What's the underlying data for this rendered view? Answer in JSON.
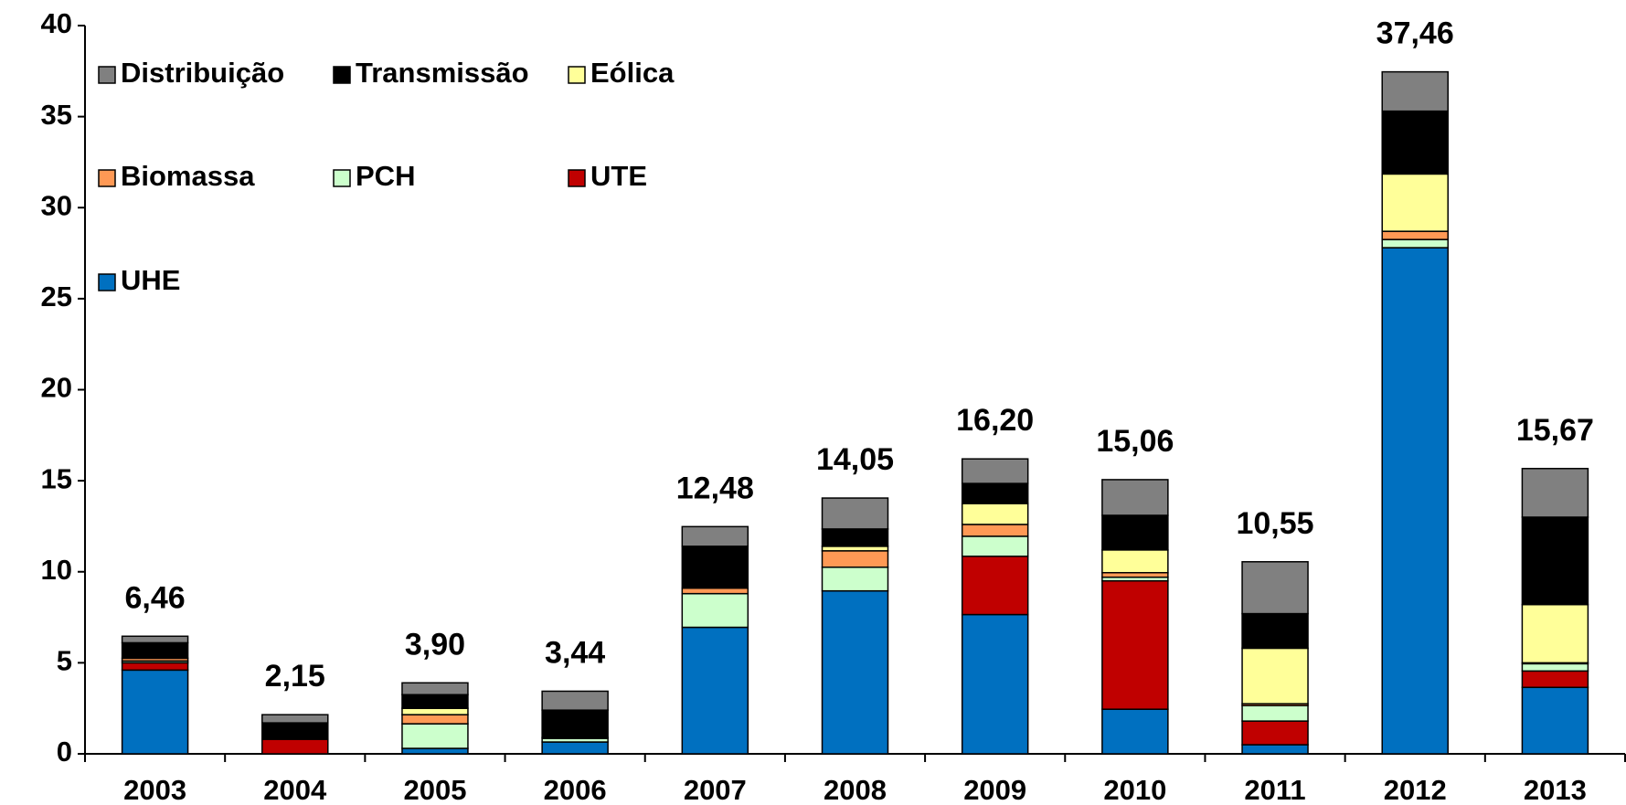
{
  "chart_data": {
    "type": "stacked_bar",
    "categories": [
      "2003",
      "2004",
      "2005",
      "2006",
      "2007",
      "2008",
      "2009",
      "2010",
      "2011",
      "2012",
      "2013"
    ],
    "series": [
      {
        "name": "UHE",
        "color": "#0070c0",
        "values": [
          4.6,
          0,
          0.3,
          0.65,
          6.95,
          8.95,
          7.65,
          2.45,
          0.5,
          27.8,
          3.65
        ]
      },
      {
        "name": "UTE",
        "color": "#c00000",
        "values": [
          0.4,
          0.8,
          0,
          0,
          0,
          0,
          3.2,
          7.05,
          1.3,
          0,
          0.9
        ]
      },
      {
        "name": "PCH",
        "color": "#ccffcc",
        "values": [
          0.1,
          0,
          1.35,
          0.2,
          1.85,
          1.3,
          1.1,
          0.2,
          0.85,
          0.45,
          0.4
        ]
      },
      {
        "name": "Biomassa",
        "color": "#ff9955",
        "values": [
          0.15,
          0,
          0.5,
          0.05,
          0.3,
          0.9,
          0.65,
          0.25,
          0.1,
          0.45,
          0.05
        ]
      },
      {
        "name": "Eólica",
        "color": "#ffff99",
        "values": [
          0,
          0,
          0.35,
          0,
          0,
          0.25,
          1.15,
          1.25,
          3.05,
          3.15,
          3.2
        ]
      },
      {
        "name": "Transmissão",
        "color": "#000000",
        "values": [
          0.85,
          0.9,
          0.75,
          1.5,
          2.3,
          0.95,
          1.1,
          1.9,
          1.9,
          3.45,
          4.8
        ]
      },
      {
        "name": "Distribuição",
        "color": "#808080",
        "values": [
          0.36,
          0.45,
          0.65,
          1.04,
          1.08,
          1.7,
          1.35,
          1.96,
          2.85,
          2.16,
          2.67
        ]
      }
    ],
    "totals": [
      6.46,
      2.15,
      3.9,
      3.44,
      12.48,
      14.05,
      16.2,
      15.06,
      10.55,
      37.46,
      15.67
    ],
    "totals_labels": [
      "6,46",
      "2,15",
      "3,90",
      "3,44",
      "12,48",
      "14,05",
      "16,20",
      "15,06",
      "10,55",
      "37,46",
      "15,67"
    ],
    "ylim": [
      0,
      40
    ],
    "yticks": [
      0,
      5,
      10,
      15,
      20,
      25,
      30,
      35,
      40
    ],
    "legend_order": [
      6,
      5,
      4,
      3,
      2,
      1,
      0
    ]
  }
}
